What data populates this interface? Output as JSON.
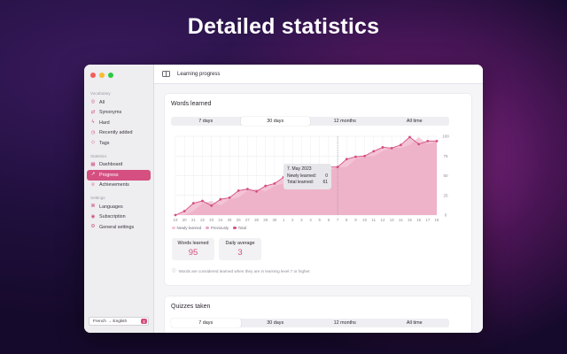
{
  "banner": {
    "title": "Detailed statistics"
  },
  "sidebar": {
    "sections": [
      {
        "title": "Vocabulary",
        "items": [
          {
            "label": "All",
            "icon": "circle-icon"
          },
          {
            "label": "Synonyms",
            "icon": "synonyms-icon"
          },
          {
            "label": "Hard",
            "icon": "bolt-icon"
          },
          {
            "label": "Recently added",
            "icon": "clock-icon"
          },
          {
            "label": "Tags",
            "icon": "tag-icon"
          }
        ]
      },
      {
        "title": "Statistics",
        "items": [
          {
            "label": "Dashboard",
            "icon": "dashboard-icon"
          },
          {
            "label": "Progress",
            "icon": "progress-chart-icon"
          },
          {
            "label": "Achievements",
            "icon": "trophy-icon"
          }
        ]
      },
      {
        "title": "Settings",
        "items": [
          {
            "label": "Languages",
            "icon": "languages-icon"
          },
          {
            "label": "Subscription",
            "icon": "subscription-icon"
          },
          {
            "label": "General settings",
            "icon": "gear-icon"
          }
        ]
      }
    ],
    "language_selector": "French → English"
  },
  "titlebar": {
    "title": "Learning progress"
  },
  "words_card": {
    "title": "Words learned",
    "ranges": [
      "7 days",
      "30 days",
      "12 months",
      "All time"
    ],
    "selected_range": "30 days",
    "tooltip": {
      "date": "7. May 2023",
      "newly_label": "Newly learned:",
      "newly_value": "0",
      "total_label": "Total learned:",
      "total_value": "61"
    },
    "legend": [
      "Newly learned",
      "Previously",
      "Total"
    ],
    "stats": [
      {
        "label": "Words learned",
        "value": "95"
      },
      {
        "label": "Daily average",
        "value": "3"
      }
    ],
    "note": "Words are considered learned when they are in learning level 7 or higher."
  },
  "quizzes_card": {
    "title": "Quizzes taken",
    "ranges": [
      "7 days",
      "30 days",
      "12 months",
      "All time"
    ],
    "selected_range": "7 days"
  },
  "chart_data": {
    "type": "area",
    "x": [
      "19",
      "20",
      "21",
      "22",
      "23",
      "24",
      "25",
      "26",
      "27",
      "28",
      "29",
      "30",
      "1",
      "2",
      "3",
      "4",
      "5",
      "6",
      "7",
      "8",
      "9",
      "10",
      "11",
      "12",
      "13",
      "14",
      "15",
      "16",
      "17",
      "18"
    ],
    "series": [
      {
        "name": "Total",
        "values": [
          0,
          5,
          15,
          18,
          12,
          20,
          22,
          31,
          33,
          30,
          37,
          40,
          48,
          48,
          40,
          47,
          57,
          61,
          61,
          71,
          74,
          75,
          81,
          86,
          85,
          89,
          99,
          90,
          94,
          94
        ]
      },
      {
        "name": "Previously",
        "values": [
          0,
          0,
          5,
          15,
          18,
          12,
          20,
          22,
          31,
          33,
          30,
          37,
          40,
          48,
          48,
          40,
          47,
          57,
          61,
          61,
          71,
          74,
          75,
          81,
          86,
          85,
          89,
          99,
          90,
          94
        ]
      }
    ],
    "ylim": [
      0,
      100
    ],
    "yticks": [
      "0",
      "25",
      "50",
      "75",
      "100"
    ],
    "highlight_index": 18,
    "colors": {
      "total": "#d54f80",
      "area": "#f3c4d6",
      "previously": "#e9a5c0"
    },
    "grid": true
  }
}
